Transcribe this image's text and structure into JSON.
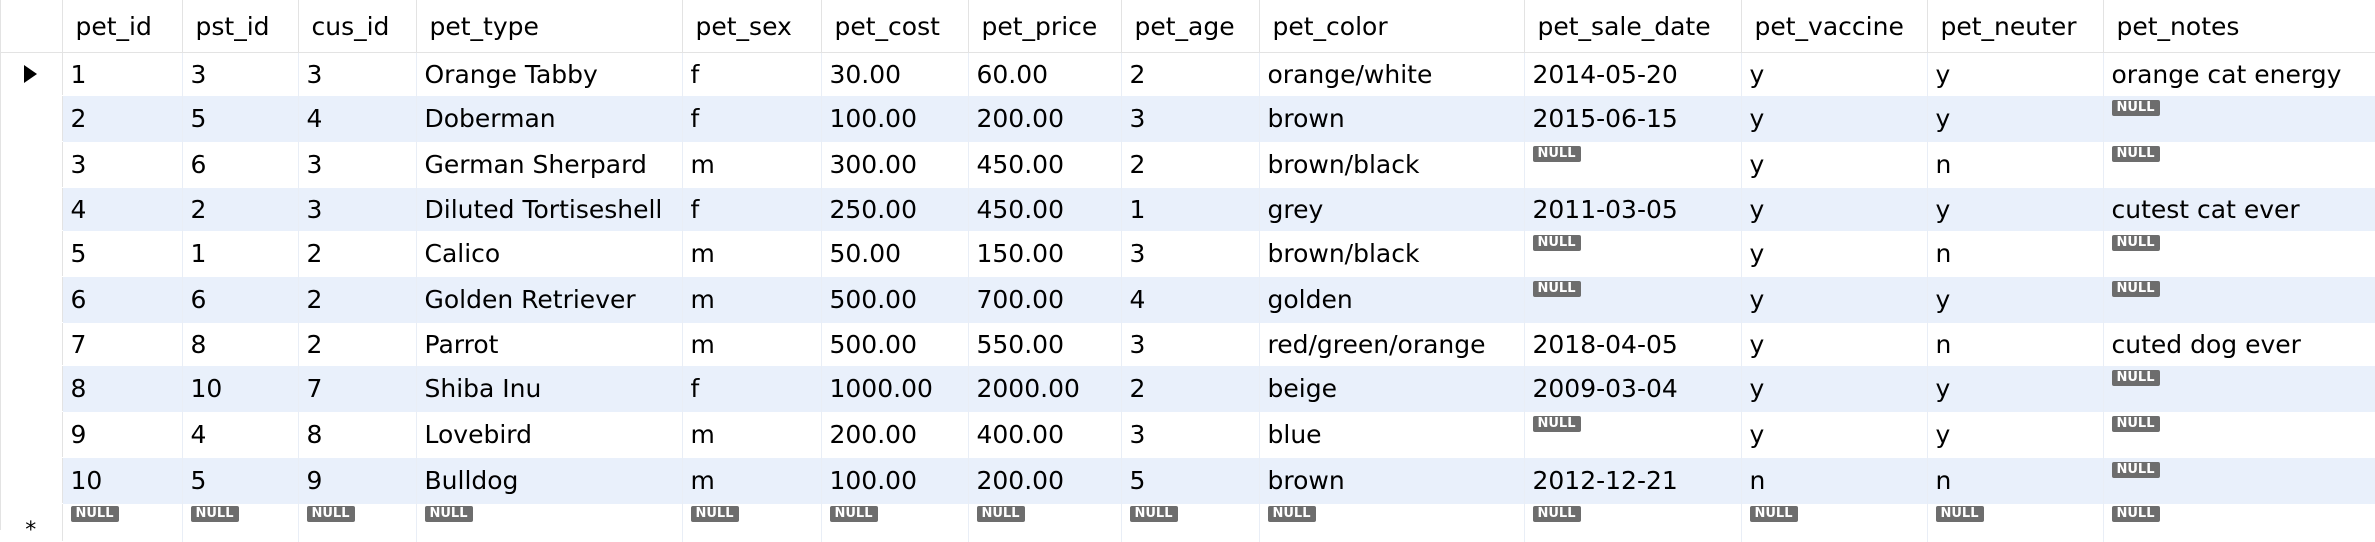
{
  "columns": [
    "pet_id",
    "pst_id",
    "cus_id",
    "pet_type",
    "pet_sex",
    "pet_cost",
    "pet_price",
    "pet_age",
    "pet_color",
    "pet_sale_date",
    "pet_vaccine",
    "pet_neuter",
    "pet_notes"
  ],
  "null_label": "NULL",
  "row_indicators": {
    "current": "arrow-right-icon",
    "new_row": "*"
  },
  "rows": [
    {
      "pet_id": "1",
      "pst_id": "3",
      "cus_id": "3",
      "pet_type": "Orange Tabby",
      "pet_sex": "f",
      "pet_cost": "30.00",
      "pet_price": "60.00",
      "pet_age": "2",
      "pet_color": "orange/white",
      "pet_sale_date": "2014-05-20",
      "pet_vaccine": "y",
      "pet_neuter": "y",
      "pet_notes": "orange cat energy"
    },
    {
      "pet_id": "2",
      "pst_id": "5",
      "cus_id": "4",
      "pet_type": "Doberman",
      "pet_sex": "f",
      "pet_cost": "100.00",
      "pet_price": "200.00",
      "pet_age": "3",
      "pet_color": "brown",
      "pet_sale_date": "2015-06-15",
      "pet_vaccine": "y",
      "pet_neuter": "y",
      "pet_notes": null
    },
    {
      "pet_id": "3",
      "pst_id": "6",
      "cus_id": "3",
      "pet_type": "German Sherpard",
      "pet_sex": "m",
      "pet_cost": "300.00",
      "pet_price": "450.00",
      "pet_age": "2",
      "pet_color": "brown/black",
      "pet_sale_date": null,
      "pet_vaccine": "y",
      "pet_neuter": "n",
      "pet_notes": null
    },
    {
      "pet_id": "4",
      "pst_id": "2",
      "cus_id": "3",
      "pet_type": "Diluted Tortiseshell",
      "pet_sex": "f",
      "pet_cost": "250.00",
      "pet_price": "450.00",
      "pet_age": "1",
      "pet_color": "grey",
      "pet_sale_date": "2011-03-05",
      "pet_vaccine": "y",
      "pet_neuter": "y",
      "pet_notes": "cutest cat ever"
    },
    {
      "pet_id": "5",
      "pst_id": "1",
      "cus_id": "2",
      "pet_type": "Calico",
      "pet_sex": "m",
      "pet_cost": "50.00",
      "pet_price": "150.00",
      "pet_age": "3",
      "pet_color": "brown/black",
      "pet_sale_date": null,
      "pet_vaccine": "y",
      "pet_neuter": "n",
      "pet_notes": null
    },
    {
      "pet_id": "6",
      "pst_id": "6",
      "cus_id": "2",
      "pet_type": "Golden Retriever",
      "pet_sex": "m",
      "pet_cost": "500.00",
      "pet_price": "700.00",
      "pet_age": "4",
      "pet_color": "golden",
      "pet_sale_date": null,
      "pet_vaccine": "y",
      "pet_neuter": "y",
      "pet_notes": null
    },
    {
      "pet_id": "7",
      "pst_id": "8",
      "cus_id": "2",
      "pet_type": "Parrot",
      "pet_sex": "m",
      "pet_cost": "500.00",
      "pet_price": "550.00",
      "pet_age": "3",
      "pet_color": "red/green/orange",
      "pet_sale_date": "2018-04-05",
      "pet_vaccine": "y",
      "pet_neuter": "n",
      "pet_notes": "cuted dog ever"
    },
    {
      "pet_id": "8",
      "pst_id": "10",
      "cus_id": "7",
      "pet_type": "Shiba Inu",
      "pet_sex": "f",
      "pet_cost": "1000.00",
      "pet_price": "2000.00",
      "pet_age": "2",
      "pet_color": "beige",
      "pet_sale_date": "2009-03-04",
      "pet_vaccine": "y",
      "pet_neuter": "y",
      "pet_notes": null
    },
    {
      "pet_id": "9",
      "pst_id": "4",
      "cus_id": "8",
      "pet_type": "Lovebird",
      "pet_sex": "m",
      "pet_cost": "200.00",
      "pet_price": "400.00",
      "pet_age": "3",
      "pet_color": "blue",
      "pet_sale_date": null,
      "pet_vaccine": "y",
      "pet_neuter": "y",
      "pet_notes": null
    },
    {
      "pet_id": "10",
      "pst_id": "5",
      "cus_id": "9",
      "pet_type": "Bulldog",
      "pet_sex": "m",
      "pet_cost": "100.00",
      "pet_price": "200.00",
      "pet_age": "5",
      "pet_color": "brown",
      "pet_sale_date": "2012-12-21",
      "pet_vaccine": "n",
      "pet_neuter": "n",
      "pet_notes": null
    }
  ]
}
